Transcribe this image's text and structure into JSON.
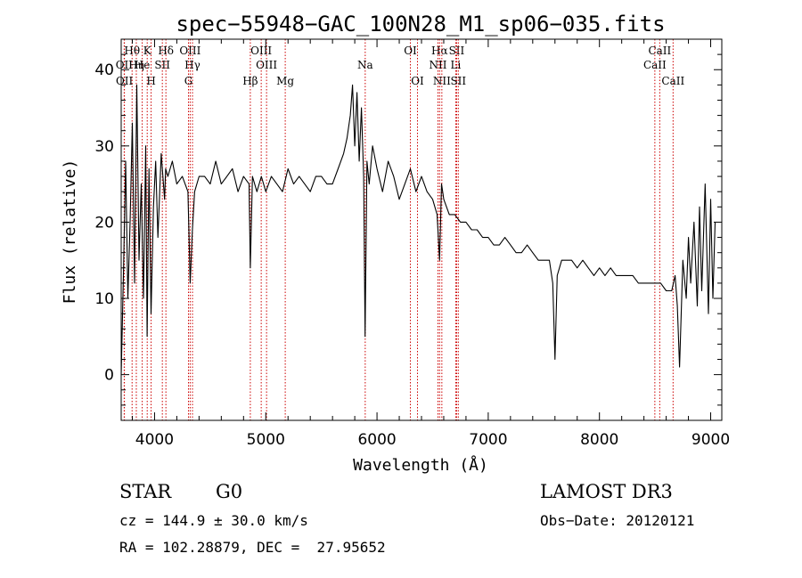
{
  "chart_data": {
    "type": "line",
    "title": "spec−55948−GAC_100N28_M1_sp06−035.fits",
    "xlabel": "Wavelength (Å)",
    "ylabel": "Flux (relative)",
    "xlim": [
      3700,
      9100
    ],
    "ylim": [
      -6,
      44
    ],
    "xticks": [
      4000,
      5000,
      6000,
      7000,
      8000,
      9000
    ],
    "yticks": [
      0,
      10,
      20,
      30,
      40
    ],
    "series": [
      {
        "name": "spectrum",
        "color": "#000000",
        "x": [
          3700,
          3720,
          3740,
          3760,
          3780,
          3800,
          3820,
          3840,
          3860,
          3880,
          3900,
          3920,
          3933,
          3950,
          3968,
          3990,
          4010,
          4030,
          4060,
          4090,
          4100,
          4120,
          4160,
          4200,
          4250,
          4300,
          4320,
          4340,
          4360,
          4400,
          4450,
          4500,
          4550,
          4600,
          4650,
          4700,
          4750,
          4800,
          4850,
          4861,
          4880,
          4920,
          4960,
          5000,
          5050,
          5100,
          5150,
          5200,
          5250,
          5300,
          5350,
          5400,
          5450,
          5500,
          5550,
          5600,
          5650,
          5700,
          5730,
          5760,
          5780,
          5800,
          5820,
          5840,
          5860,
          5880,
          5893,
          5910,
          5930,
          5960,
          6000,
          6050,
          6100,
          6150,
          6200,
          6250,
          6300,
          6350,
          6400,
          6450,
          6500,
          6540,
          6563,
          6580,
          6600,
          6650,
          6700,
          6750,
          6800,
          6850,
          6900,
          6950,
          7000,
          7050,
          7100,
          7150,
          7200,
          7250,
          7300,
          7350,
          7400,
          7450,
          7500,
          7550,
          7580,
          7600,
          7620,
          7640,
          7660,
          7700,
          7750,
          7800,
          7850,
          7900,
          7950,
          8000,
          8050,
          8100,
          8150,
          8200,
          8250,
          8300,
          8350,
          8400,
          8450,
          8500,
          8550,
          8600,
          8650,
          8680,
          8700,
          8720,
          8750,
          8780,
          8800,
          8820,
          8850,
          8880,
          8900,
          8920,
          8950,
          8980,
          9000,
          9020,
          9040
        ],
        "y": [
          0,
          13,
          28,
          10,
          20,
          33,
          12,
          38,
          15,
          25,
          10,
          30,
          5,
          27,
          8,
          22,
          28,
          18,
          29,
          23,
          27,
          26,
          28,
          25,
          26,
          24,
          12,
          19,
          24,
          26,
          26,
          25,
          28,
          25,
          26,
          27,
          24,
          26,
          25,
          14,
          26,
          24,
          26,
          24,
          26,
          25,
          24,
          27,
          25,
          26,
          25,
          24,
          26,
          26,
          25,
          25,
          27,
          29,
          31,
          34,
          38,
          30,
          37,
          28,
          35,
          26,
          5,
          28,
          25,
          30,
          27,
          24,
          28,
          26,
          23,
          25,
          27,
          24,
          26,
          24,
          23,
          21,
          15,
          25,
          23,
          21,
          21,
          20,
          20,
          19,
          19,
          18,
          18,
          17,
          17,
          18,
          17,
          16,
          16,
          17,
          16,
          15,
          15,
          15,
          12,
          2,
          13,
          14,
          15,
          15,
          15,
          14,
          15,
          14,
          13,
          14,
          13,
          14,
          13,
          13,
          13,
          13,
          12,
          12,
          12,
          12,
          12,
          11,
          11,
          13,
          9,
          1,
          15,
          10,
          18,
          12,
          20,
          9,
          22,
          11,
          25,
          8,
          23,
          10,
          20
        ]
      }
    ],
    "lines": [
      {
        "label": "Hθ",
        "wave": 3798,
        "row": 1
      },
      {
        "label": "OII",
        "wave": 3727,
        "row": 2
      },
      {
        "label": "Hη",
        "wave": 3836,
        "row": 2
      },
      {
        "label": "OII",
        "wave": 3729,
        "row": 3
      },
      {
        "label": "He",
        "wave": 3889,
        "row": 2
      },
      {
        "label": "K",
        "wave": 3934,
        "row": 1
      },
      {
        "label": "SII",
        "wave": 4070,
        "row": 2
      },
      {
        "label": "H",
        "wave": 3969,
        "row": 3
      },
      {
        "label": "Hδ",
        "wave": 4102,
        "row": 1
      },
      {
        "label": "OIII",
        "wave": 4320,
        "row": 1
      },
      {
        "label": "Hγ",
        "wave": 4341,
        "row": 2
      },
      {
        "label": "G",
        "wave": 4305,
        "row": 3
      },
      {
        "label": "OIII",
        "wave": 4959,
        "row": 1
      },
      {
        "label": "OIII",
        "wave": 5007,
        "row": 2
      },
      {
        "label": "Hβ",
        "wave": 4861,
        "row": 3
      },
      {
        "label": "Mg",
        "wave": 5175,
        "row": 3
      },
      {
        "label": "Na",
        "wave": 5894,
        "row": 2
      },
      {
        "label": "OI",
        "wave": 6300,
        "row": 1
      },
      {
        "label": "OI",
        "wave": 6364,
        "row": 3
      },
      {
        "label": "Hα",
        "wave": 6563,
        "row": 1
      },
      {
        "label": "NII",
        "wave": 6548,
        "row": 2
      },
      {
        "label": "NII",
        "wave": 6583,
        "row": 3
      },
      {
        "label": "SII",
        "wave": 6716,
        "row": 1
      },
      {
        "label": "Li",
        "wave": 6708,
        "row": 2
      },
      {
        "label": "SII",
        "wave": 6731,
        "row": 3
      },
      {
        "label": "CaII",
        "wave": 8542,
        "row": 1
      },
      {
        "label": "CaII",
        "wave": 8498,
        "row": 2
      },
      {
        "label": "CaII",
        "wave": 8662,
        "row": 3
      }
    ]
  },
  "info": {
    "class": "STAR",
    "subclass": "G0",
    "survey": "LAMOST DR3",
    "cz": "cz = 144.9 ± 30.0 km/s",
    "obs_date": "Obs−Date: 20120121",
    "radec": "RA = 102.28879, DEC =  27.95652"
  }
}
